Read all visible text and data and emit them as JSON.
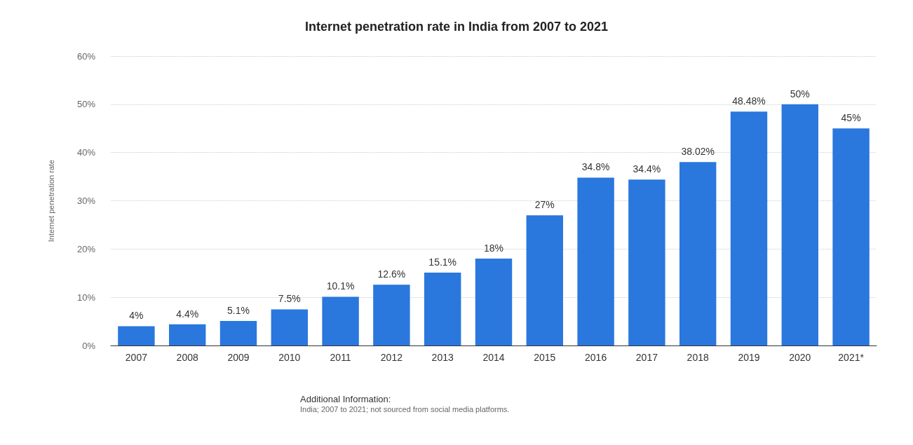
{
  "chart_data": {
    "type": "bar",
    "title": "Internet penetration rate in India from 2007 to 2021",
    "ylabel": "Internet penetration rate",
    "categories": [
      "2007",
      "2008",
      "2009",
      "2010",
      "2011",
      "2012",
      "2013",
      "2014",
      "2015",
      "2016",
      "2017",
      "2018",
      "2019",
      "2020",
      "2021*"
    ],
    "values": [
      4,
      4.4,
      5.1,
      7.5,
      10.1,
      12.6,
      15.1,
      18,
      27,
      34.8,
      34.4,
      38.02,
      48.48,
      50,
      45
    ],
    "value_labels": [
      "4%",
      "4.4%",
      "5.1%",
      "7.5%",
      "10.1%",
      "12.6%",
      "15.1%",
      "18%",
      "27%",
      "34.8%",
      "34.4%",
      "38.02%",
      "48.48%",
      "50%",
      "45%"
    ],
    "color": "#2a77dd",
    "ylim": [
      0,
      60
    ],
    "yticks": [
      {
        "value": 0,
        "label": "0%"
      },
      {
        "value": 10,
        "label": "10%"
      },
      {
        "value": 20,
        "label": "20%"
      },
      {
        "value": 30,
        "label": "30%"
      },
      {
        "value": 40,
        "label": "40%"
      },
      {
        "value": 50,
        "label": "50%"
      },
      {
        "value": 60,
        "label": "60%"
      }
    ],
    "grid": "y",
    "annotations": [
      "Additional Information:",
      "India; 2007 to 2021; not sourced from social media platforms."
    ]
  }
}
